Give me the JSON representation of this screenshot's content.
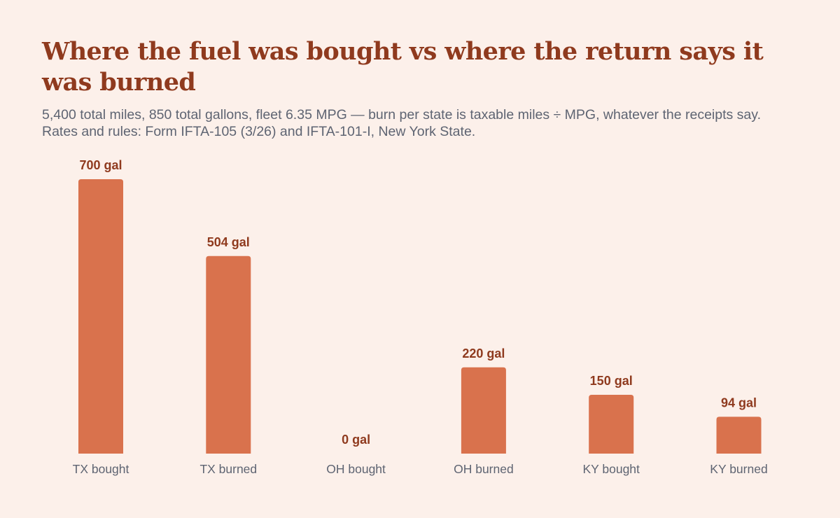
{
  "title": "Where the fuel was bought vs where the return says it was burned",
  "subtitle": "5,400 total miles, 850 total gallons, fleet 6.35 MPG — burn per state is taxable miles ÷ MPG, whatever the receipts say. Rates and rules: Form IFTA-105 (3/26) and IFTA-101-I, New York State.",
  "colors": {
    "background": "#fcf0ea",
    "bar": "#d9724d",
    "title": "#8f3a1e",
    "value_label": "#8f3a1e",
    "category_label": "#5e6472"
  },
  "chart_data": {
    "type": "bar",
    "title": "Where the fuel was bought vs where the return says it was burned",
    "categories": [
      "TX bought",
      "TX burned",
      "OH bought",
      "OH burned",
      "KY bought",
      "KY burned"
    ],
    "values": [
      700,
      504,
      0,
      220,
      150,
      94
    ],
    "value_labels": [
      "700 gal",
      "504 gal",
      "0 gal",
      "220 gal",
      "150 gal",
      "94 gal"
    ],
    "ylim": [
      0,
      700
    ],
    "grid": false,
    "xlabel": "",
    "ylabel": ""
  }
}
